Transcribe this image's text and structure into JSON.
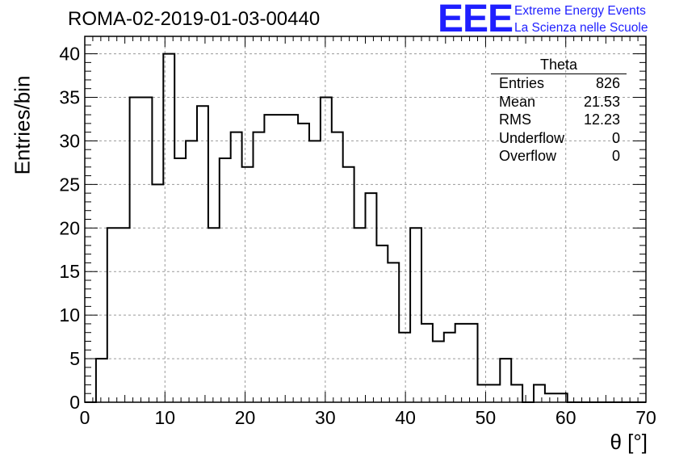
{
  "header": {
    "title": "ROMA-02-2019-01-03-00440",
    "logo": "EEE",
    "logo_line1": "Extreme Energy Events",
    "logo_line2": "La Scienza nelle Scuole"
  },
  "stats": {
    "name": "Theta",
    "rows": [
      {
        "label": "Entries",
        "value": "826"
      },
      {
        "label": "Mean",
        "value": "21.53"
      },
      {
        "label": "RMS",
        "value": "12.23"
      },
      {
        "label": "Underflow",
        "value": "0"
      },
      {
        "label": "Overflow",
        "value": "0"
      }
    ]
  },
  "chart_data": {
    "type": "bar",
    "histogram": true,
    "title": "ROMA-02-2019-01-03-00440",
    "xlabel": "θ [°]",
    "ylabel": "Entries/bin",
    "xlim": [
      0,
      70
    ],
    "ylim": [
      0,
      42
    ],
    "xticks": [
      0,
      10,
      20,
      30,
      40,
      50,
      60,
      70
    ],
    "yticks": [
      0,
      5,
      10,
      15,
      20,
      25,
      30,
      35,
      40
    ],
    "grid": true,
    "legend_position": "top-right",
    "line_color": "#000000",
    "bin_width": 1.4,
    "bin_start": 0,
    "values": [
      0,
      5,
      20,
      20,
      35,
      35,
      25,
      40,
      28,
      30,
      34,
      20,
      28,
      31,
      27,
      31,
      33,
      33,
      33,
      32,
      30,
      35,
      31,
      27,
      20,
      24,
      18,
      16,
      8,
      20,
      9,
      7,
      8,
      9,
      9,
      2,
      2,
      5,
      2,
      0,
      2,
      1,
      1,
      0,
      0,
      0,
      0,
      0,
      0,
      0
    ]
  }
}
